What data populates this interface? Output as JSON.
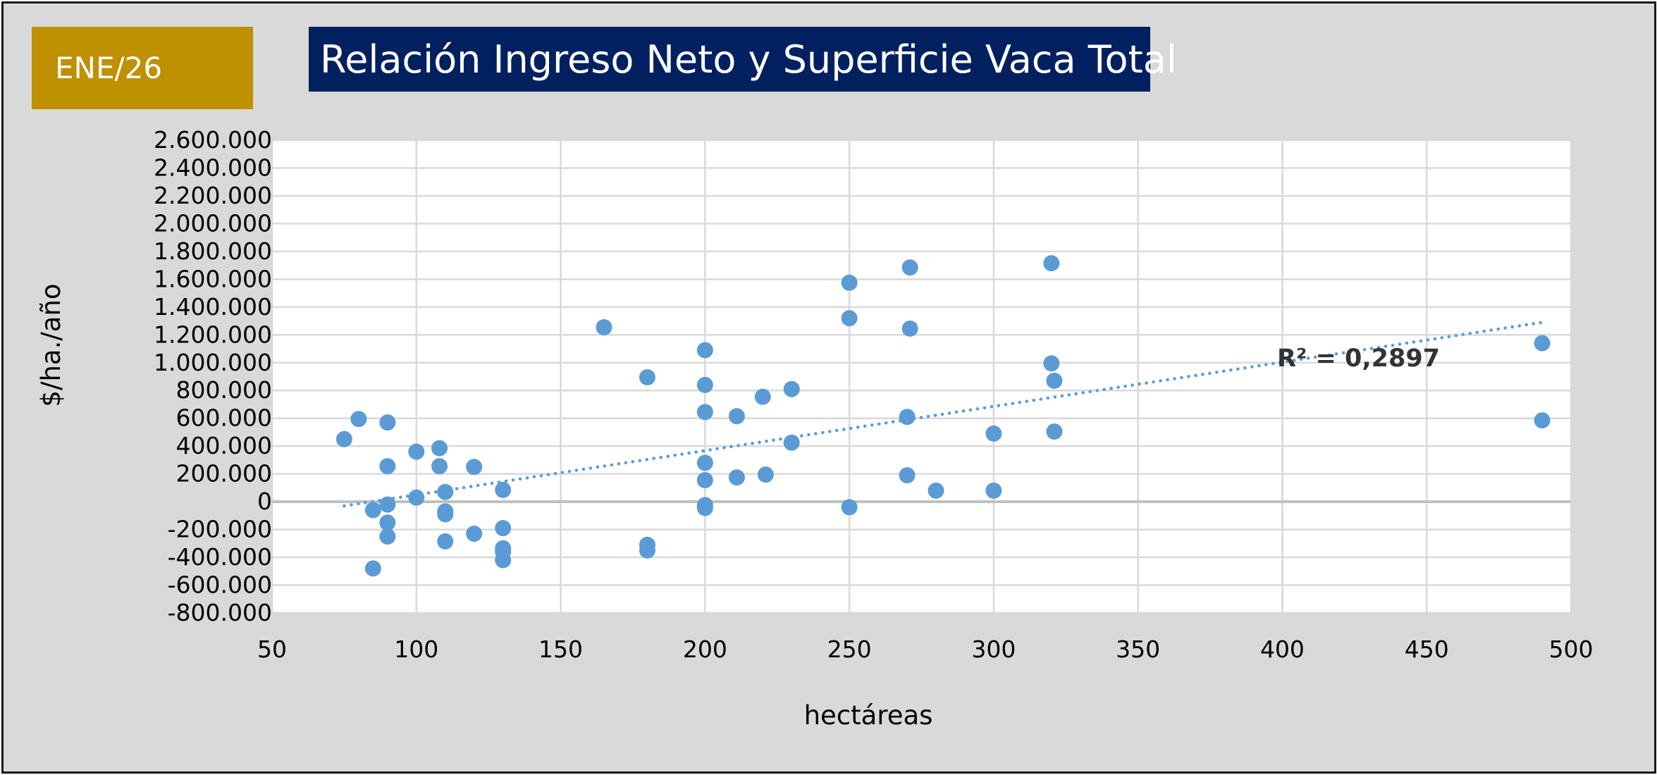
{
  "badge": "ENE/26",
  "title": "Relación Ingreso Neto y Superficie Vaca Total",
  "chart_data": {
    "type": "scatter",
    "xlabel": "hectáreas",
    "ylabel": "$/ha./año",
    "xlim": [
      50,
      500
    ],
    "ylim": [
      -800000,
      2600000
    ],
    "x_ticks": [
      50,
      100,
      150,
      200,
      250,
      300,
      350,
      400,
      450,
      500
    ],
    "y_ticks": [
      2600000,
      2400000,
      2200000,
      2000000,
      1800000,
      1600000,
      1400000,
      1200000,
      1000000,
      800000,
      600000,
      400000,
      200000,
      0,
      -200000,
      -400000,
      -600000,
      -800000
    ],
    "x_tick_labels": [
      "50",
      "100",
      "150",
      "200",
      "250",
      "300",
      "350",
      "400",
      "450",
      "500"
    ],
    "y_tick_labels": [
      "2.600.000",
      "2.400.000",
      "2.200.000",
      "2.000.000",
      "1.800.000",
      "1.600.000",
      "1.400.000",
      "1.200.000",
      "1.000.000",
      "800.000",
      "600.000",
      "400.000",
      "200.000",
      "0",
      "-200.000",
      "-400.000",
      "-600.000",
      "-800.000"
    ],
    "grid": true,
    "point_color": "#5b9bd5",
    "points": [
      [
        75,
        450000
      ],
      [
        80,
        595000
      ],
      [
        85,
        -60000
      ],
      [
        85,
        -480000
      ],
      [
        90,
        570000
      ],
      [
        90,
        255000
      ],
      [
        90,
        -20000
      ],
      [
        90,
        -150000
      ],
      [
        90,
        -250000
      ],
      [
        100,
        360000
      ],
      [
        100,
        30000
      ],
      [
        108,
        385000
      ],
      [
        108,
        255000
      ],
      [
        110,
        70000
      ],
      [
        110,
        -70000
      ],
      [
        110,
        -90000
      ],
      [
        110,
        -285000
      ],
      [
        120,
        250000
      ],
      [
        120,
        -230000
      ],
      [
        130,
        85000
      ],
      [
        130,
        -190000
      ],
      [
        130,
        -335000
      ],
      [
        130,
        -360000
      ],
      [
        130,
        -420000
      ],
      [
        165,
        1255000
      ],
      [
        180,
        895000
      ],
      [
        180,
        -310000
      ],
      [
        180,
        -350000
      ],
      [
        200,
        1090000
      ],
      [
        200,
        840000
      ],
      [
        200,
        645000
      ],
      [
        200,
        280000
      ],
      [
        200,
        155000
      ],
      [
        200,
        -25000
      ],
      [
        200,
        -45000
      ],
      [
        211,
        615000
      ],
      [
        211,
        175000
      ],
      [
        220,
        755000
      ],
      [
        221,
        195000
      ],
      [
        230,
        810000
      ],
      [
        230,
        425000
      ],
      [
        250,
        1575000
      ],
      [
        250,
        1320000
      ],
      [
        250,
        -40000
      ],
      [
        271,
        1685000
      ],
      [
        271,
        1245000
      ],
      [
        270,
        610000
      ],
      [
        270,
        190000
      ],
      [
        280,
        80000
      ],
      [
        300,
        490000
      ],
      [
        300,
        80000
      ],
      [
        320,
        1715000
      ],
      [
        320,
        995000
      ],
      [
        321,
        870000
      ],
      [
        321,
        505000
      ],
      [
        490,
        1140000
      ],
      [
        490,
        585000
      ]
    ],
    "trendline": {
      "type": "linear",
      "x": [
        75,
        490
      ],
      "y": [
        -30000,
        1290000
      ],
      "color": "#5b9bd5",
      "style": "dotted"
    },
    "annotation": "R² = 0,2897"
  }
}
